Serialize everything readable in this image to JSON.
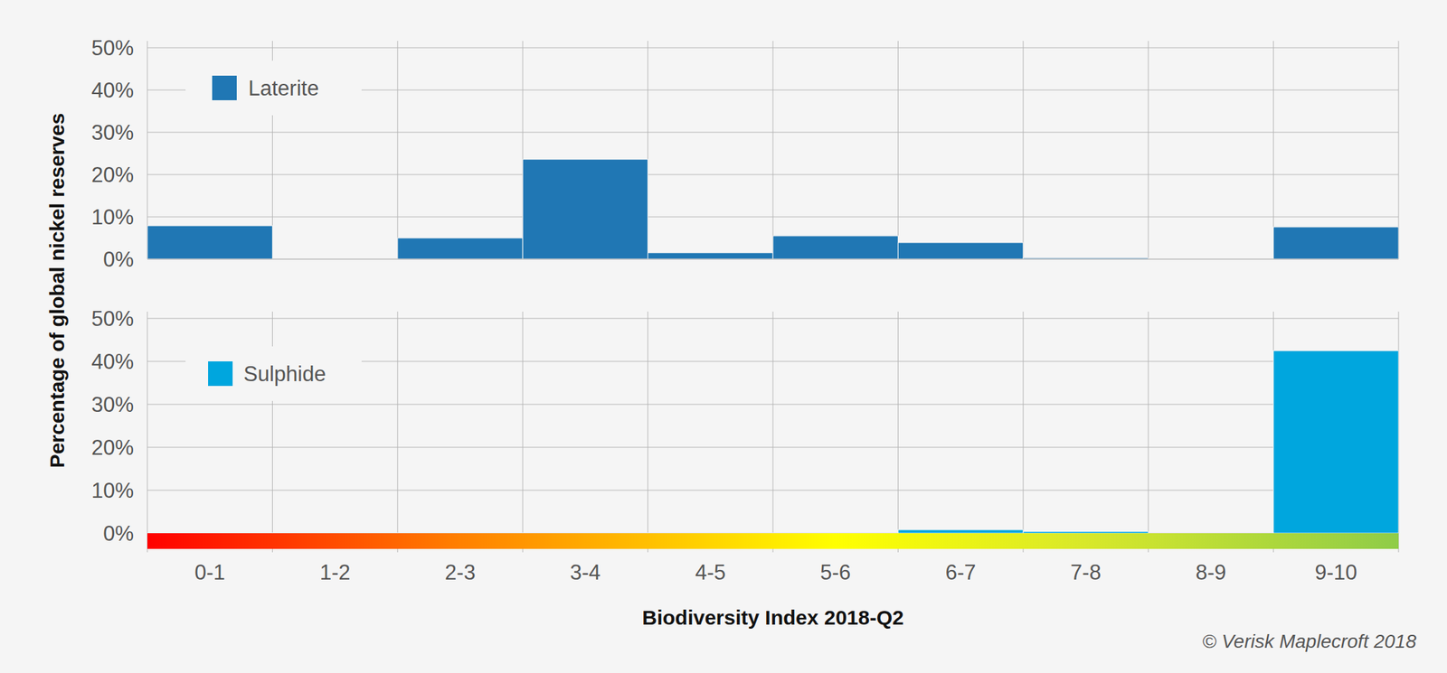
{
  "chart_data": [
    {
      "type": "bar",
      "categories": [
        "0-1",
        "1-2",
        "2-3",
        "3-4",
        "4-5",
        "5-6",
        "6-7",
        "7-8",
        "8-9",
        "9-10"
      ],
      "series": [
        {
          "name": "Laterite",
          "color": "#2077b4",
          "values": [
            7.9,
            0,
            5.0,
            23.6,
            1.5,
            5.5,
            3.9,
            0.3,
            0,
            7.6
          ]
        }
      ],
      "ylim": [
        0,
        50
      ],
      "yticks": [
        {
          "value": 0,
          "label": "0%"
        },
        {
          "value": 10,
          "label": "10%"
        },
        {
          "value": 20,
          "label": "20%"
        },
        {
          "value": 30,
          "label": "30%"
        },
        {
          "value": 40,
          "label": "40%"
        },
        {
          "value": 50,
          "label": "50%"
        }
      ],
      "grid": true,
      "legend": "top-left",
      "tick_labels": "y"
    },
    {
      "type": "bar",
      "categories": [
        "0-1",
        "1-2",
        "2-3",
        "3-4",
        "4-5",
        "5-6",
        "6-7",
        "7-8",
        "8-9",
        "9-10"
      ],
      "series": [
        {
          "name": "Sulphide",
          "color": "#00a6de",
          "values": [
            0,
            0,
            0,
            0,
            0,
            0,
            0.8,
            0.4,
            0,
            42.5
          ]
        }
      ],
      "ylim": [
        0,
        50
      ],
      "yticks": [
        {
          "value": 0,
          "label": "0%"
        },
        {
          "value": 10,
          "label": "10%"
        },
        {
          "value": 20,
          "label": "20%"
        },
        {
          "value": 30,
          "label": "30%"
        },
        {
          "value": 40,
          "label": "40%"
        },
        {
          "value": 50,
          "label": "50%"
        }
      ],
      "grid": true,
      "legend": "top-left"
    }
  ],
  "ylabel": "Percentage of global nickel reserves",
  "xlabel": "Biodiversity Index 2018-Q2",
  "source": "© Verisk Maplecroft 2018"
}
